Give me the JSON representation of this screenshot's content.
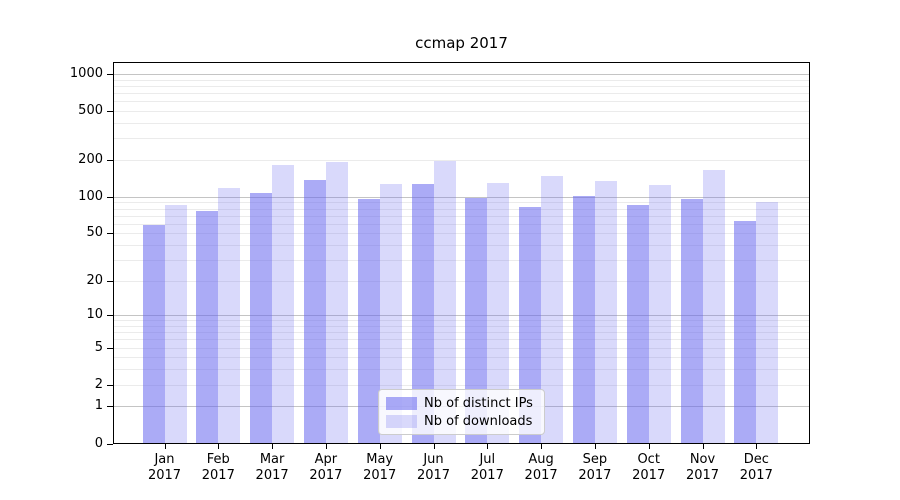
{
  "chart_data": {
    "type": "bar",
    "title": "ccmap 2017",
    "categories": [
      "Jan",
      "Feb",
      "Mar",
      "Apr",
      "May",
      "Jun",
      "Jul",
      "Aug",
      "Sep",
      "Oct",
      "Nov",
      "Dec"
    ],
    "category_year": "2017",
    "series": [
      {
        "name": "Nb of distinct IPs",
        "color": "#6666ee",
        "alpha": 0.55,
        "values": [
          59,
          76,
          107,
          137,
          95,
          127,
          97,
          82,
          102,
          85,
          96,
          63
        ]
      },
      {
        "name": "Nb of downloads",
        "color": "#6666ee",
        "alpha": 0.25,
        "values": [
          86,
          118,
          181,
          193,
          128,
          195,
          129,
          148,
          134,
          125,
          167,
          91
        ]
      }
    ],
    "y_axis": {
      "scale": "log10(1+y)",
      "ticks": [
        0,
        1,
        2,
        5,
        10,
        20,
        50,
        100,
        200,
        500,
        1000
      ],
      "max": 1252
    },
    "x_axis": {
      "year": "2017"
    },
    "legend": {
      "position": "lower center"
    },
    "grid": {
      "major_color": "#c4c4c4",
      "minor_color": "#ebebeb"
    },
    "colors": {
      "spine": "#000000",
      "text": "#000000"
    }
  }
}
